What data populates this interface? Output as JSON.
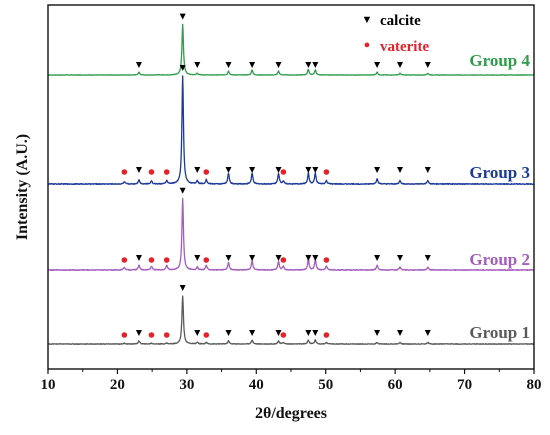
{
  "chart_data": {
    "type": "line",
    "title": "",
    "xlabel": "2θ/degrees",
    "ylabel": "Intensity (A.U.)",
    "xlim": [
      10,
      80
    ],
    "xticks": [
      10,
      20,
      30,
      40,
      50,
      60,
      70,
      80
    ],
    "yticks_shown": false,
    "legend": [
      {
        "label": "calcite",
        "marker": "▼",
        "color": "#000000"
      },
      {
        "label": "vaterite",
        "marker": "●",
        "color": "#e8202a"
      }
    ],
    "series": [
      {
        "name": "Group 4",
        "color": "#2e9d4a",
        "baseline": 0,
        "peaks": [
          [
            23.1,
            0.05
          ],
          [
            29.4,
            0.9
          ],
          [
            31.5,
            0.03
          ],
          [
            36.0,
            0.07
          ],
          [
            39.4,
            0.09
          ],
          [
            43.2,
            0.07
          ],
          [
            47.5,
            0.1
          ],
          [
            48.5,
            0.09
          ],
          [
            57.4,
            0.05
          ],
          [
            60.7,
            0.03
          ],
          [
            64.7,
            0.03
          ]
        ],
        "calcite_markers": [
          23.1,
          29.4,
          31.5,
          36.0,
          39.4,
          43.2,
          47.5,
          48.5,
          57.4,
          60.7,
          64.7
        ],
        "vaterite_markers": []
      },
      {
        "name": "Group 3",
        "color": "#1d3a9a",
        "baseline": 0,
        "peaks": [
          [
            21.0,
            0.02
          ],
          [
            23.1,
            0.04
          ],
          [
            24.9,
            0.03
          ],
          [
            27.1,
            0.03
          ],
          [
            29.4,
            1.0
          ],
          [
            31.5,
            0.03
          ],
          [
            32.8,
            0.04
          ],
          [
            36.0,
            0.1
          ],
          [
            39.4,
            0.1
          ],
          [
            43.2,
            0.1
          ],
          [
            43.9,
            0.03
          ],
          [
            47.5,
            0.1
          ],
          [
            48.5,
            0.1
          ],
          [
            50.1,
            0.03
          ],
          [
            57.4,
            0.05
          ],
          [
            60.7,
            0.03
          ],
          [
            64.7,
            0.03
          ]
        ],
        "calcite_markers": [
          23.1,
          29.4,
          31.5,
          36.0,
          39.4,
          43.2,
          47.5,
          48.5,
          57.4,
          60.7,
          64.7
        ],
        "vaterite_markers": [
          21.0,
          24.9,
          27.1,
          32.8,
          43.9,
          50.1
        ]
      },
      {
        "name": "Group 2",
        "color": "#a45cbe",
        "baseline": 0,
        "peaks": [
          [
            21.0,
            0.03
          ],
          [
            23.1,
            0.05
          ],
          [
            24.9,
            0.04
          ],
          [
            27.1,
            0.05
          ],
          [
            29.4,
            0.75
          ],
          [
            31.5,
            0.03
          ],
          [
            32.8,
            0.05
          ],
          [
            36.0,
            0.08
          ],
          [
            39.4,
            0.1
          ],
          [
            43.2,
            0.09
          ],
          [
            43.9,
            0.04
          ],
          [
            47.5,
            0.11
          ],
          [
            48.5,
            0.11
          ],
          [
            50.1,
            0.04
          ],
          [
            57.4,
            0.05
          ],
          [
            60.7,
            0.03
          ],
          [
            64.7,
            0.03
          ]
        ],
        "calcite_markers": [
          23.1,
          29.4,
          31.5,
          36.0,
          39.4,
          43.2,
          47.5,
          48.5,
          57.4,
          60.7,
          64.7
        ],
        "vaterite_markers": [
          21.0,
          24.9,
          27.1,
          32.8,
          43.9,
          50.1
        ]
      },
      {
        "name": "Group 1",
        "color": "#5a5a5a",
        "baseline": 0,
        "peaks": [
          [
            21.0,
            0.01
          ],
          [
            23.1,
            0.04
          ],
          [
            24.9,
            0.01
          ],
          [
            27.1,
            0.01
          ],
          [
            29.4,
            0.6
          ],
          [
            31.5,
            0.02
          ],
          [
            32.8,
            0.02
          ],
          [
            36.0,
            0.04
          ],
          [
            39.4,
            0.05
          ],
          [
            43.2,
            0.04
          ],
          [
            43.9,
            0.02
          ],
          [
            47.5,
            0.05
          ],
          [
            48.5,
            0.05
          ],
          [
            50.1,
            0.02
          ],
          [
            57.4,
            0.02
          ],
          [
            60.7,
            0.02
          ],
          [
            64.7,
            0.02
          ]
        ],
        "calcite_markers": [
          23.1,
          29.4,
          31.5,
          36.0,
          39.4,
          43.2,
          47.5,
          48.5,
          57.4,
          60.7,
          64.7
        ],
        "vaterite_markers": [
          21.0,
          24.9,
          27.1,
          32.8,
          43.9,
          50.1
        ]
      }
    ]
  }
}
